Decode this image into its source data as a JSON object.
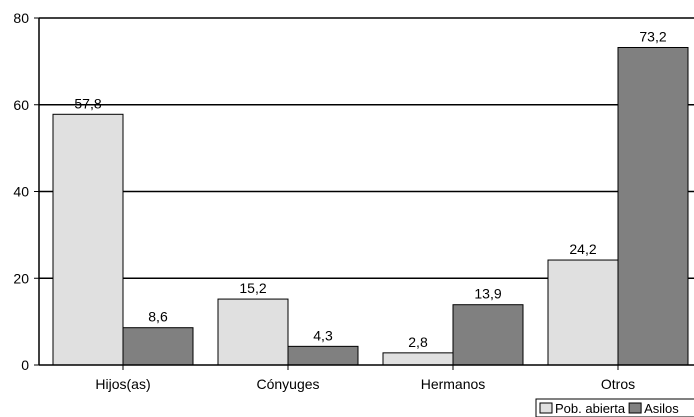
{
  "chart_data": {
    "type": "bar",
    "title": "",
    "xlabel": "",
    "ylabel": "",
    "categories": [
      "Hijos(as)",
      "Cónyuges",
      "Hermanos",
      "Otros"
    ],
    "series": [
      {
        "name": "Pob. abierta",
        "values": [
          57.8,
          15.2,
          2.8,
          24.2
        ],
        "labels": [
          "57,8",
          "15,2",
          "2,8",
          "24,2"
        ],
        "color": "#e0e0e0"
      },
      {
        "name": "Asilos",
        "values": [
          8.6,
          4.3,
          13.9,
          73.2
        ],
        "labels": [
          "8,6",
          "4,3",
          "13,9",
          "73,2"
        ],
        "color": "#808080"
      }
    ],
    "ylim": [
      0,
      80
    ],
    "yticks": [
      0,
      20,
      40,
      60,
      80
    ],
    "grid": true,
    "legend_position": "bottom-right"
  }
}
